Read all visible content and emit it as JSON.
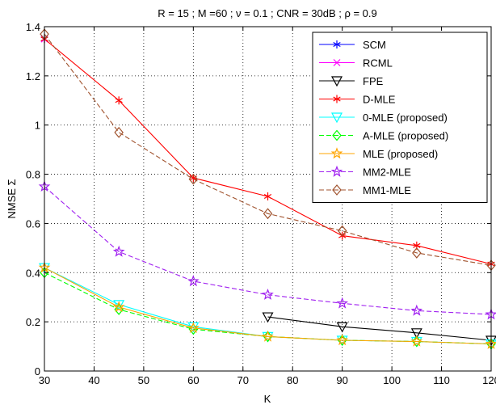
{
  "chart_data": {
    "type": "line",
    "title": "R = 15 ; M =60 ; ν = 0.1 ; CNR = 30dB ; ρ = 0.9",
    "xlabel": "K",
    "ylabel": "NMSE Σ",
    "xlim": [
      30,
      120
    ],
    "ylim": [
      0,
      1.4
    ],
    "xticks": [
      30,
      40,
      50,
      60,
      70,
      80,
      90,
      100,
      110,
      120
    ],
    "yticks": [
      0,
      0.2,
      0.4,
      0.6,
      0.8,
      1,
      1.2,
      1.4
    ],
    "xtick_labels": [
      "30",
      "40",
      "50",
      "60",
      "70",
      "80",
      "90",
      "100",
      "110",
      "120"
    ],
    "ytick_labels": [
      "0",
      "0.2",
      "0.4",
      "0.6",
      "0.8",
      "1",
      "1.2",
      "1.4"
    ],
    "grid": true,
    "legend_position": "top-right",
    "series": [
      {
        "name": "SCM",
        "color": "#0000ff",
        "dash": "solid",
        "marker": "asterisk",
        "x": [
          30
        ],
        "y": [
          1.35
        ]
      },
      {
        "name": "RCML",
        "color": "#ff00ff",
        "dash": "solid",
        "marker": "x",
        "x": [
          30
        ],
        "y": [
          1.35
        ]
      },
      {
        "name": "FPE",
        "color": "#000000",
        "dash": "solid",
        "marker": "triangle-down",
        "x": [
          75,
          90,
          105,
          120
        ],
        "y": [
          0.22,
          0.18,
          0.155,
          0.125
        ]
      },
      {
        "name": "D-MLE",
        "color": "#ff0000",
        "dash": "solid",
        "marker": "asterisk",
        "x": [
          30,
          45,
          60,
          75,
          90,
          105,
          120
        ],
        "y": [
          1.35,
          1.1,
          0.785,
          0.71,
          0.55,
          0.51,
          0.435
        ]
      },
      {
        "name": "0-MLE (proposed)",
        "color": "#00ffff",
        "dash": "solid",
        "marker": "triangle-down",
        "x": [
          30,
          45,
          60,
          75,
          90,
          105,
          120
        ],
        "y": [
          0.42,
          0.27,
          0.18,
          0.14,
          0.125,
          0.12,
          0.11
        ]
      },
      {
        "name": "A-MLE (proposed)",
        "color": "#00ff00",
        "dash": "dashed",
        "marker": "diamond",
        "x": [
          30,
          45,
          60,
          75,
          90,
          105,
          120
        ],
        "y": [
          0.4,
          0.25,
          0.17,
          0.14,
          0.125,
          0.12,
          0.11
        ]
      },
      {
        "name": "MLE (proposed)",
        "color": "#ffa500",
        "dash": "solid",
        "marker": "pentagram",
        "x": [
          30,
          45,
          60,
          75,
          90,
          105,
          120
        ],
        "y": [
          0.42,
          0.26,
          0.175,
          0.14,
          0.125,
          0.12,
          0.11
        ]
      },
      {
        "name": "MM2-MLE",
        "color": "#a020f0",
        "dash": "dashed",
        "marker": "pentagram",
        "x": [
          30,
          45,
          60,
          75,
          90,
          105,
          120
        ],
        "y": [
          0.75,
          0.485,
          0.365,
          0.31,
          0.275,
          0.245,
          0.23
        ]
      },
      {
        "name": "MM1-MLE",
        "color": "#a0522d",
        "dash": "dashed",
        "marker": "diamond",
        "x": [
          30,
          45,
          60,
          75,
          90,
          105,
          120
        ],
        "y": [
          1.37,
          0.97,
          0.78,
          0.64,
          0.57,
          0.48,
          0.43
        ]
      }
    ]
  }
}
